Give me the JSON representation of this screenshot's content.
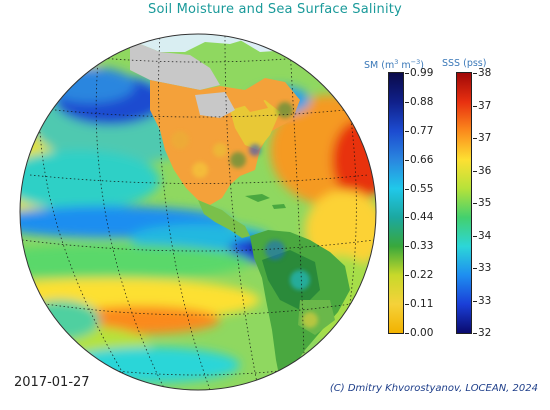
{
  "title": "Soil Moisture and Sea Surface Salinity",
  "sm_colorbar": {
    "label_prefix": "SM (m",
    "label_exp1": "3",
    "label_mid": " m",
    "label_exp2": "−3",
    "label_suffix": ")",
    "ticks": [
      "0.99",
      "0.88",
      "0.77",
      "0.66",
      "0.55",
      "0.44",
      "0.33",
      "0.22",
      "0.11",
      "0.00"
    ],
    "colors": [
      "#f2b200",
      "#f5d23a",
      "#c8d92a",
      "#39a83c",
      "#1ca8a0",
      "#20c8ea",
      "#2a86df",
      "#1c4bd0",
      "#10208a",
      "#0a0a4a"
    ]
  },
  "sss_colorbar": {
    "label": "SSS (pss)",
    "ticks": [
      "38",
      "37",
      "37",
      "36",
      "35",
      "34",
      "33",
      "33",
      "32"
    ],
    "colors": [
      "#0a0a6e",
      "#1a3fd8",
      "#1e8ef0",
      "#2cd6d8",
      "#43d06e",
      "#b6e23a",
      "#fde032",
      "#fb8a1c",
      "#e83010",
      "#a00808"
    ]
  },
  "date": "2017-01-27",
  "credit": "(C) Dmitry Khvorostyanov, LOCEAN, 2024"
}
